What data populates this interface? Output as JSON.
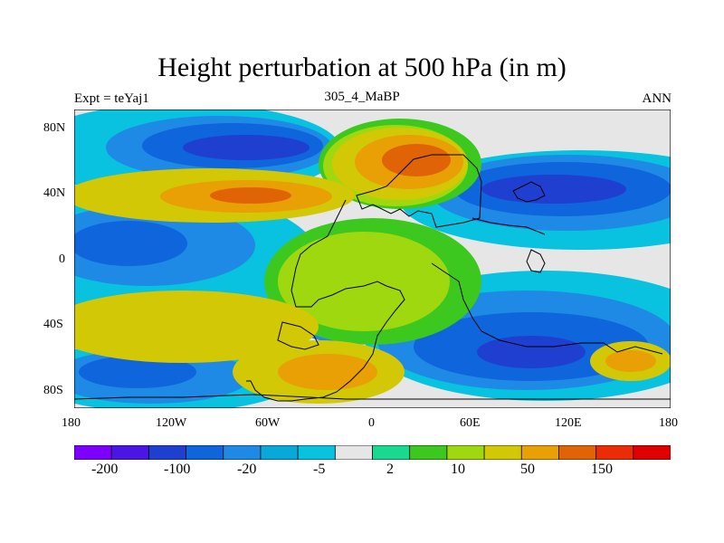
{
  "title": "Height perturbation at 500 hPa (in m)",
  "left_label": "Expt = teYaj1",
  "center_label": "305_4_MaBP",
  "right_label": "ANN",
  "y_ticks": [
    "80N",
    "40N",
    "0",
    "40S",
    "80S"
  ],
  "x_ticks": [
    "180",
    "120W",
    "60W",
    "0",
    "60E",
    "120E",
    "180"
  ],
  "colorbar": {
    "colors": [
      "#7d00ff",
      "#4b16e3",
      "#1f3fd1",
      "#0f65dc",
      "#1e8ae6",
      "#08a8d8",
      "#08c2e0",
      "#e6e6e6",
      "#19d890",
      "#3cc81e",
      "#a0d80f",
      "#d2c805",
      "#e8a005",
      "#e06405",
      "#eb2c05",
      "#e00000"
    ],
    "labels": [
      "-200",
      "-100",
      "-20",
      "-5",
      "2",
      "10",
      "50",
      "150"
    ]
  }
}
